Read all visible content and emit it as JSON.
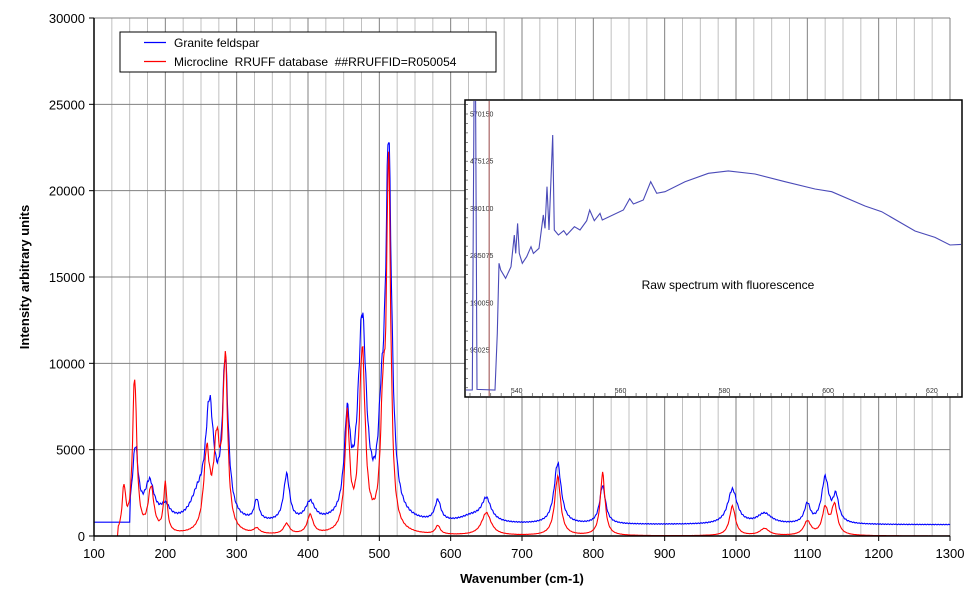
{
  "chart_data": [
    {
      "type": "line",
      "title": "",
      "xlabel": "Wavenumber (cm-1)",
      "ylabel": "Intensity arbitrary units",
      "xlim": [
        100,
        1300
      ],
      "ylim": [
        0,
        30000
      ],
      "xticks": [
        100,
        200,
        300,
        400,
        500,
        600,
        700,
        800,
        900,
        1000,
        1100,
        1200,
        1300
      ],
      "yticks": [
        0,
        5000,
        10000,
        15000,
        20000,
        25000,
        30000
      ],
      "grid": true,
      "legend_position": "top-left",
      "series": [
        {
          "name": "Granite feldspar",
          "color": "#0000ff",
          "baseline": 650,
          "start_flat": {
            "until": 150,
            "value": 800
          },
          "peaks_center_height_width": [
            [
              158,
              4200,
              5
            ],
            [
              178,
              2200,
              8
            ],
            [
              200,
              800,
              8
            ],
            [
              245,
              1200,
              12
            ],
            [
              262,
              6500,
              7
            ],
            [
              284,
              9000,
              5
            ],
            [
              328,
              1200,
              4
            ],
            [
              370,
              2700,
              5
            ],
            [
              403,
              1100,
              8
            ],
            [
              455,
              5500,
              5
            ],
            [
              476,
              11500,
              7
            ],
            [
              503,
              4000,
              5
            ],
            [
              513,
              21500,
              5
            ],
            [
              582,
              1200,
              5
            ],
            [
              630,
              400,
              20
            ],
            [
              650,
              1300,
              8
            ],
            [
              750,
              3500,
              6
            ],
            [
              813,
              2200,
              5
            ],
            [
              995,
              2000,
              8
            ],
            [
              1040,
              600,
              12
            ],
            [
              1100,
              1100,
              5
            ],
            [
              1125,
              2600,
              6
            ],
            [
              1140,
              1500,
              5
            ]
          ]
        },
        {
          "name": "Microcline  RRUFF database  ##RRUFFID=R050054",
          "color": "#ff0000",
          "baseline": 0,
          "start_flat": {
            "until": 133,
            "value": 0
          },
          "peaks_center_height_width": [
            [
              142,
              2500,
              3
            ],
            [
              157,
              9000,
              3.5
            ],
            [
              180,
              2600,
              5
            ],
            [
              200,
              2800,
              3
            ],
            [
              258,
              4500,
              5
            ],
            [
              272,
              4800,
              5
            ],
            [
              284,
              9800,
              4
            ],
            [
              328,
              300,
              5
            ],
            [
              370,
              600,
              5
            ],
            [
              403,
              1100,
              5
            ],
            [
              455,
              6500,
              4
            ],
            [
              476,
              10500,
              5
            ],
            [
              505,
              6000,
              4
            ],
            [
              513,
              21000,
              3.5
            ],
            [
              582,
              500,
              4
            ],
            [
              650,
              1300,
              8
            ],
            [
              750,
              3400,
              5
            ],
            [
              813,
              3600,
              4
            ],
            [
              995,
              1700,
              5
            ],
            [
              1040,
              400,
              8
            ],
            [
              1100,
              800,
              6
            ],
            [
              1125,
              1500,
              5
            ],
            [
              1138,
              1700,
              5
            ]
          ]
        }
      ]
    },
    {
      "type": "line",
      "title": "Raw spectrum with fluorescence",
      "xlim": [
        530,
        626
      ],
      "ylim": [
        0,
        598000
      ],
      "xticks": [
        540,
        560,
        580,
        600,
        620
      ],
      "yticks": [
        95025,
        190050,
        285075,
        380100,
        475125,
        570150
      ],
      "marker_line_x": 534.7,
      "marker_line_color": "#b07070",
      "series": [
        {
          "name": "Raw spectrum",
          "color": "#4a4ab8",
          "points": [
            [
              530.04,
              14500
            ],
            [
              531.45,
              14500
            ],
            [
              531.77,
              598000
            ],
            [
              532.09,
              598000
            ],
            [
              532.35,
              15800
            ],
            [
              535.82,
              14500
            ],
            [
              536.27,
              128600
            ],
            [
              536.59,
              269500
            ],
            [
              536.91,
              256000
            ],
            [
              537.87,
              239300
            ],
            [
              538.9,
              262800
            ],
            [
              539.54,
              326500
            ],
            [
              539.8,
              289600
            ],
            [
              540.18,
              350000
            ],
            [
              540.5,
              289600
            ],
            [
              541.08,
              269500
            ],
            [
              541.92,
              282900
            ],
            [
              542.76,
              303000
            ],
            [
              543.21,
              289600
            ],
            [
              544.3,
              299700
            ],
            [
              545.13,
              366800
            ],
            [
              545.45,
              340000
            ],
            [
              545.84,
              423800
            ],
            [
              546.23,
              336600
            ],
            [
              546.93,
              527800
            ],
            [
              547.25,
              336600
            ],
            [
              548.03,
              326500
            ],
            [
              549.05,
              335200
            ],
            [
              549.63,
              326500
            ],
            [
              551.11,
              343300
            ],
            [
              552.2,
              336600
            ],
            [
              553.48,
              355400
            ],
            [
              554.06,
              376800
            ],
            [
              554.96,
              355400
            ],
            [
              556.05,
              370100
            ],
            [
              556.5,
              356700
            ],
            [
              560.55,
              376800
            ],
            [
              561.77,
              399700
            ],
            [
              562.48,
              388900
            ],
            [
              564.4,
              397000
            ],
            [
              565.82,
              433900
            ],
            [
              566.97,
              410400
            ],
            [
              568.58,
              413700
            ],
            [
              572.43,
              433900
            ],
            [
              576.93,
              450700
            ],
            [
              580.78,
              455500
            ],
            [
              585.92,
              449300
            ],
            [
              591.7,
              433900
            ],
            [
              597.48,
              419100
            ],
            [
              600.69,
              413700
            ],
            [
              607.11,
              384900
            ],
            [
              610.33,
              373500
            ],
            [
              616.75,
              334600
            ],
            [
              620.6,
              321800
            ],
            [
              623.49,
              306400
            ],
            [
              625.74,
              307700
            ]
          ]
        }
      ]
    }
  ]
}
